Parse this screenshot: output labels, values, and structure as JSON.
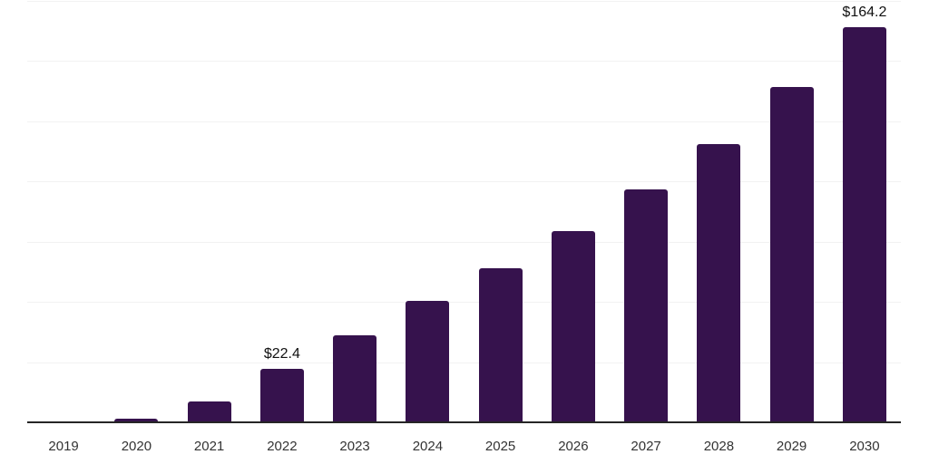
{
  "chart_data": {
    "type": "bar",
    "title": "",
    "xlabel": "",
    "ylabel": "",
    "categories": [
      "2019",
      "2020",
      "2021",
      "2022",
      "2023",
      "2024",
      "2025",
      "2026",
      "2027",
      "2028",
      "2029",
      "2030"
    ],
    "values": [
      0.3,
      1.6,
      8.5,
      22.4,
      36.0,
      50.5,
      64.0,
      79.4,
      96.6,
      115.7,
      139.3,
      164.2
    ],
    "data_labels": {
      "2022": "$22.4",
      "2030": "$164.2"
    },
    "ylim": [
      0,
      175
    ],
    "grid_step": 25,
    "grid": "horizontal-only",
    "legend": "none",
    "y_axis_ticks_visible": false
  },
  "colors": {
    "bar": "#36124D",
    "gridline": "#F2F2F2",
    "axis_line": "#262626",
    "tick_label": "#333333",
    "value_label": "#111111",
    "background": "#FFFFFF"
  }
}
